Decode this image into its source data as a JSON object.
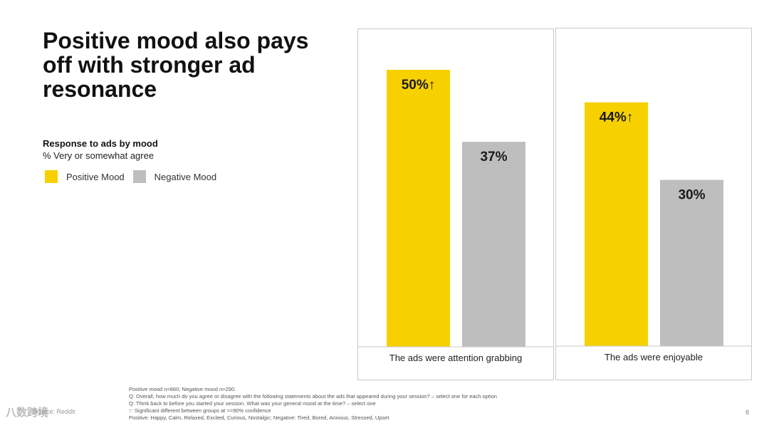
{
  "title": "Positive mood also pays off with stronger ad resonance",
  "subtitle": "Response to ads by mood",
  "subtitle2": "% Very or somewhat agree",
  "legend": [
    {
      "label": "Positive Mood",
      "color": "#F7D000"
    },
    {
      "label": "Negative Mood",
      "color": "#BEBEBE"
    }
  ],
  "chart_data": {
    "type": "bar",
    "title": "Response to ads by mood",
    "ylabel": "% Very or somewhat agree",
    "ylim": [
      0,
      60
    ],
    "categories": [
      "The ads were attention grabbing",
      "The ads were enjoyable"
    ],
    "series": [
      {
        "name": "Positive Mood",
        "values": [
          50,
          44
        ],
        "labels": [
          "50%↑",
          "44%↑"
        ],
        "color": "#F7D000"
      },
      {
        "name": "Negative Mood",
        "values": [
          37,
          30
        ],
        "labels": [
          "37%",
          "30%"
        ],
        "color": "#BEBEBE"
      }
    ]
  },
  "footnotes": [
    "Positive mood n=860; Negative mood n=290.",
    "Q: Overall, how much do you agree or disagree with the following statements about the ads that appeared during your session? – select one for each option",
    "Q: Think back to before you started your session. What was your general mood at the time? – select one",
    "↑: Significant different between groups at >=90% confidence",
    "Positive: Happy, Calm, Relaxed, Excited, Curious, Nostalgic; Negative: Tired, Bored, Anxious, Stressed, Upset"
  ],
  "page_number": "8",
  "watermark": "八数跨境",
  "watermark_ghost": "Source: Reddit"
}
